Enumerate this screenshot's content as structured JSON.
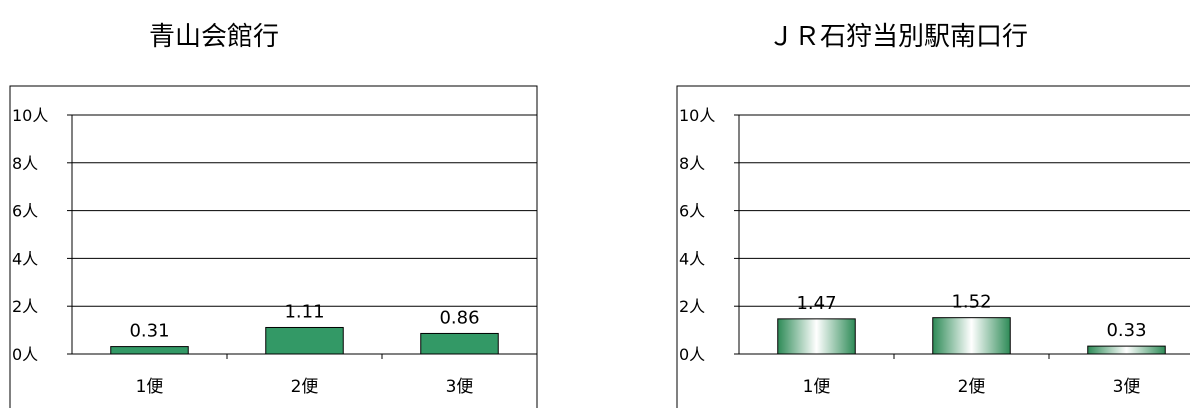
{
  "chart_data": [
    {
      "type": "bar",
      "title": "青山会館行",
      "categories": [
        "1便",
        "2便",
        "3便"
      ],
      "values": [
        0.31,
        1.11,
        0.86
      ],
      "data_labels": [
        "0.31",
        "1.11",
        "0.86"
      ],
      "y_ticks": [
        "0人",
        "2人",
        "4人",
        "6人",
        "8人",
        "10人"
      ],
      "ylim": [
        0,
        10
      ],
      "grid": true,
      "bar_color": "#339966"
    },
    {
      "type": "bar",
      "title": "ＪＲ石狩当別駅南口行",
      "categories": [
        "1便",
        "2便",
        "3便"
      ],
      "values": [
        1.47,
        1.52,
        0.33
      ],
      "data_labels": [
        "1.47",
        "1.52",
        "0.33"
      ],
      "y_ticks": [
        "0人",
        "2人",
        "4人",
        "6人",
        "8人",
        "10人"
      ],
      "ylim": [
        0,
        10
      ],
      "grid": true,
      "bar_color": "#2e8b57",
      "bar_fill": "gradient"
    }
  ]
}
